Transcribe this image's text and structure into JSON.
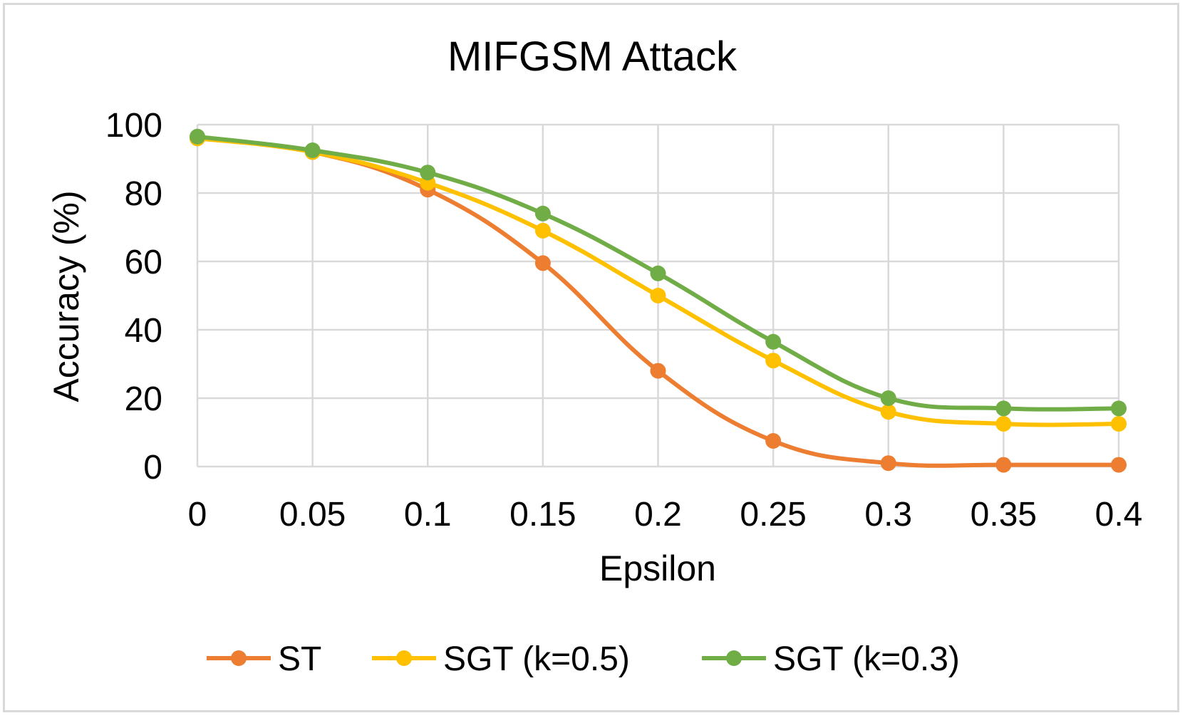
{
  "chart_data": {
    "type": "line",
    "title": "MIFGSM Attack",
    "xlabel": "Epsilon",
    "ylabel": "Accuracy (%)",
    "categories": [
      "0",
      "0.05",
      "0.1",
      "0.15",
      "0.2",
      "0.25",
      "0.3",
      "0.35",
      "0.4"
    ],
    "x": [
      0,
      0.05,
      0.1,
      0.15,
      0.2,
      0.25,
      0.3,
      0.35,
      0.4
    ],
    "ylim": [
      0,
      100
    ],
    "yticks": [
      0,
      20,
      40,
      60,
      80,
      100
    ],
    "ytick_labels": [
      "0",
      "20",
      "40",
      "60",
      "80",
      "100"
    ],
    "grid": true,
    "smooth": true,
    "legend_position": "bottom",
    "series": [
      {
        "name": "ST",
        "color": "#ed7d31",
        "values": [
          96,
          92,
          81,
          59.5,
          28,
          7.5,
          1,
          0.5,
          0.5
        ]
      },
      {
        "name": "SGT (k=0.5)",
        "color": "#ffc000",
        "values": [
          96,
          92,
          83,
          69,
          50,
          31,
          16,
          12.5,
          12.5
        ]
      },
      {
        "name": "SGT (k=0.3)",
        "color": "#70ad47",
        "values": [
          96.5,
          92.5,
          86,
          74,
          56.5,
          36.5,
          20,
          17,
          17
        ]
      }
    ],
    "grid_color": "#d9d9d9"
  }
}
